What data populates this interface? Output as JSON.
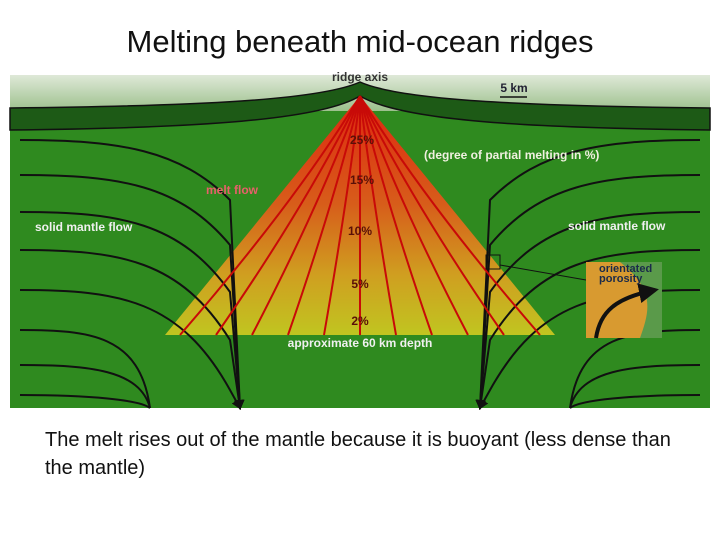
{
  "title": "Melting beneath mid-ocean ridges",
  "diagram": {
    "ridge_axis": "ridge axis",
    "scale": "5 km",
    "p25": "25%",
    "degree_note": "(degree of partial melting in %)",
    "p15": "15%",
    "melt_flow": "melt flow",
    "solid_flow_left": "solid mantle flow",
    "p10": "10%",
    "solid_flow_right": "solid mantle flow",
    "porosity_line1": "orientated",
    "porosity_line2": "porosity",
    "p5": "5%",
    "p2": "2%",
    "depth": "approximate 60 km depth"
  },
  "caption": "The melt rises out of the mantle because it is buoyant (less dense than the mantle)"
}
